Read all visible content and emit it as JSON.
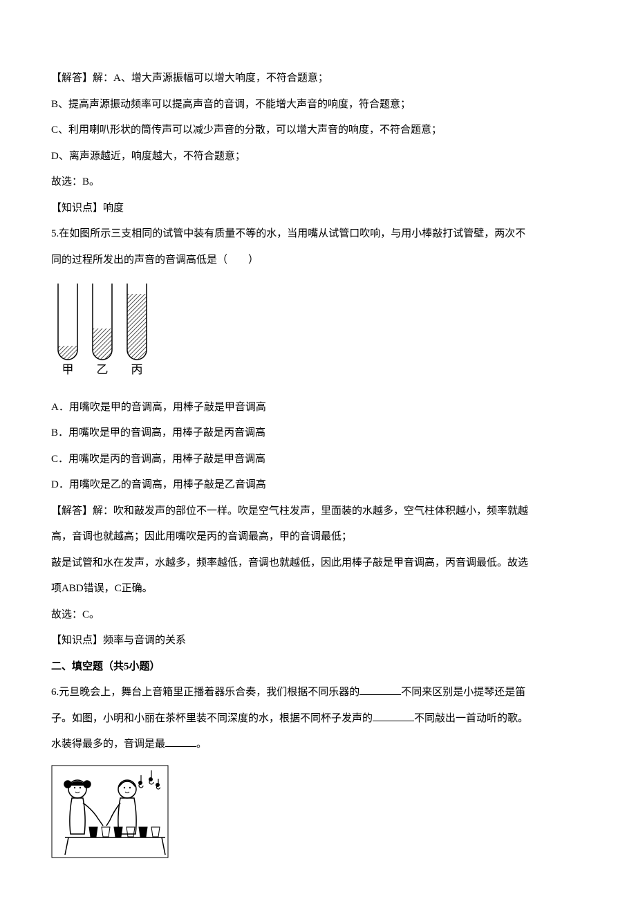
{
  "q4": {
    "answer_label": "【解答】解：A、增大声源振幅可以增大响度，不符合题意；",
    "option_b": "B、提高声源振动频率可以提高声音的音调，不能增大声音的响度，符合题意；",
    "option_c": "C、利用喇叭形状的筒传声可以减少声音的分散，可以增大声音的响度，不符合题意；",
    "option_d": "D、离声源越近，响度越大，不符合题意；",
    "conclusion": "故选：B。",
    "knowledge": "【知识点】响度"
  },
  "q5": {
    "question_line1": "5.在如图所示三支相同的试管中装有质量不等的水，当用嘴从试管口吹响，与用小棒敲打试管壁，两次不",
    "question_line2": "同的过程所发出的声音的音调高低是（　　）",
    "option_a": "A．用嘴吹是甲的音调高，用棒子敲是甲音调高",
    "option_b": "B．用嘴吹是甲的音调高，用棒子敲是丙音调高",
    "option_c": "C．用嘴吹是丙的音调高，用棒子敲是甲音调高",
    "option_d": "D．用嘴吹是乙的音调高，用棒子敲是乙音调高",
    "answer_line1": "【解答】解：吹和敲发声的部位不一样。吹是空气柱发声，里面装的水越多，空气柱体积越小，频率就越",
    "answer_line2": "高，音调也就越高；因此用嘴吹是丙的音调最高，甲的音调最低；",
    "answer_line3": "敲是试管和水在发声，水越多，频率越低，音调也就越低，因此用棒子敲是甲音调高，丙音调最低。故选",
    "answer_line4": "项ABD错误，C正确。",
    "conclusion": "故选：C。",
    "knowledge": "【知识点】频率与音调的关系"
  },
  "section2": {
    "header": "二、填空题（共5小题）"
  },
  "q6": {
    "part1": "6.元旦晚会上，舞台上音箱里正播着器乐合奏，我们根据不同乐器的",
    "part2": "不同来区别是小提琴还是笛",
    "part3": "子。如图，小明和小丽在茶杯里装不同深度的水，根据不同杯子发声的",
    "part4": "不同敲出一首动听的歌。",
    "part5": "水装得最多的，音调是最",
    "part6": "。"
  },
  "diagrams": {
    "test_tubes": {
      "labels": [
        "甲",
        "乙",
        "丙"
      ],
      "tube_width": 28,
      "tube_height": 110,
      "spacing": 50,
      "water_heights": [
        20,
        45,
        95
      ],
      "stroke_color": "#000000",
      "hatch_color": "#555555",
      "label_fontsize": 17
    },
    "music_scene": {
      "width": 170,
      "height": 135,
      "bg_color": "#ffffff",
      "line_color": "#000000"
    }
  }
}
